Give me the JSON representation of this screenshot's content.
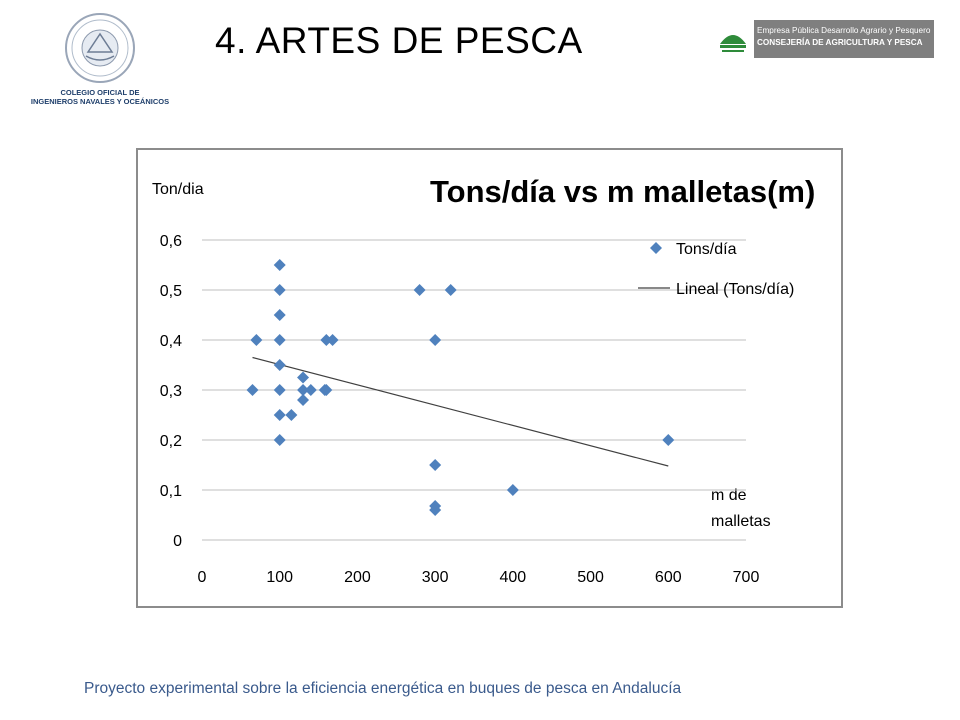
{
  "header": {
    "title": "4. ARTES DE PESCA",
    "left_logo": {
      "icon": "seal-emblem",
      "caption_line1": "COLEGIO OFICIAL DE",
      "caption_line2": "INGENIEROS NAVALES Y OCEÁNICOS"
    },
    "right_logo": {
      "icon": "junta-andalucia-emblem",
      "line1": "Empresa Pública Desarrollo Agrario y Pesquero",
      "line2": "CONSEJERÍA DE AGRICULTURA Y PESCA"
    }
  },
  "footer": {
    "text": "Proyecto experimental sobre la eficiencia energética en buques de pesca en Andalucía"
  },
  "colors": {
    "marker": "#4f81bd",
    "trendline": "#404040",
    "grid": "#bfbfbf",
    "logo_green": "#2e8b3a",
    "logo_gray": "#7f7f7f"
  },
  "chart_data": {
    "type": "scatter",
    "title": "Tons/día vs m malletas(m)",
    "ylabel": "Ton/dia",
    "xlabel_line1": "m de",
    "xlabel_line2": "malletas",
    "xlim": [
      0,
      700
    ],
    "ylim": [
      0,
      0.6
    ],
    "x_ticks": [
      "0",
      "100",
      "200",
      "300",
      "400",
      "500",
      "600",
      "700"
    ],
    "y_ticks": [
      "0",
      "0,1",
      "0,2",
      "0,3",
      "0,4",
      "0,5",
      "0,6"
    ],
    "grid": "horizontal",
    "legend_position": "top-right",
    "legend": {
      "series_label": "Tons/día",
      "trend_label": "Lineal (Tons/día)"
    },
    "series": [
      {
        "name": "Tons/día",
        "points": [
          [
            65,
            0.3
          ],
          [
            70,
            0.4
          ],
          [
            100,
            0.55
          ],
          [
            100,
            0.5
          ],
          [
            100,
            0.45
          ],
          [
            100,
            0.4
          ],
          [
            100,
            0.35
          ],
          [
            100,
            0.3
          ],
          [
            100,
            0.25
          ],
          [
            100,
            0.2
          ],
          [
            115,
            0.25
          ],
          [
            130,
            0.325
          ],
          [
            130,
            0.3
          ],
          [
            130,
            0.28
          ],
          [
            140,
            0.3
          ],
          [
            158,
            0.3
          ],
          [
            160,
            0.3
          ],
          [
            160,
            0.4
          ],
          [
            168,
            0.4
          ],
          [
            280,
            0.5
          ],
          [
            300,
            0.4
          ],
          [
            300,
            0.15
          ],
          [
            300,
            0.068
          ],
          [
            300,
            0.06
          ],
          [
            320,
            0.5
          ],
          [
            400,
            0.1
          ],
          [
            600,
            0.2
          ]
        ]
      }
    ],
    "trendline": {
      "x_start": 65,
      "y_start": 0.365,
      "x_end": 600,
      "y_end": 0.148
    }
  }
}
